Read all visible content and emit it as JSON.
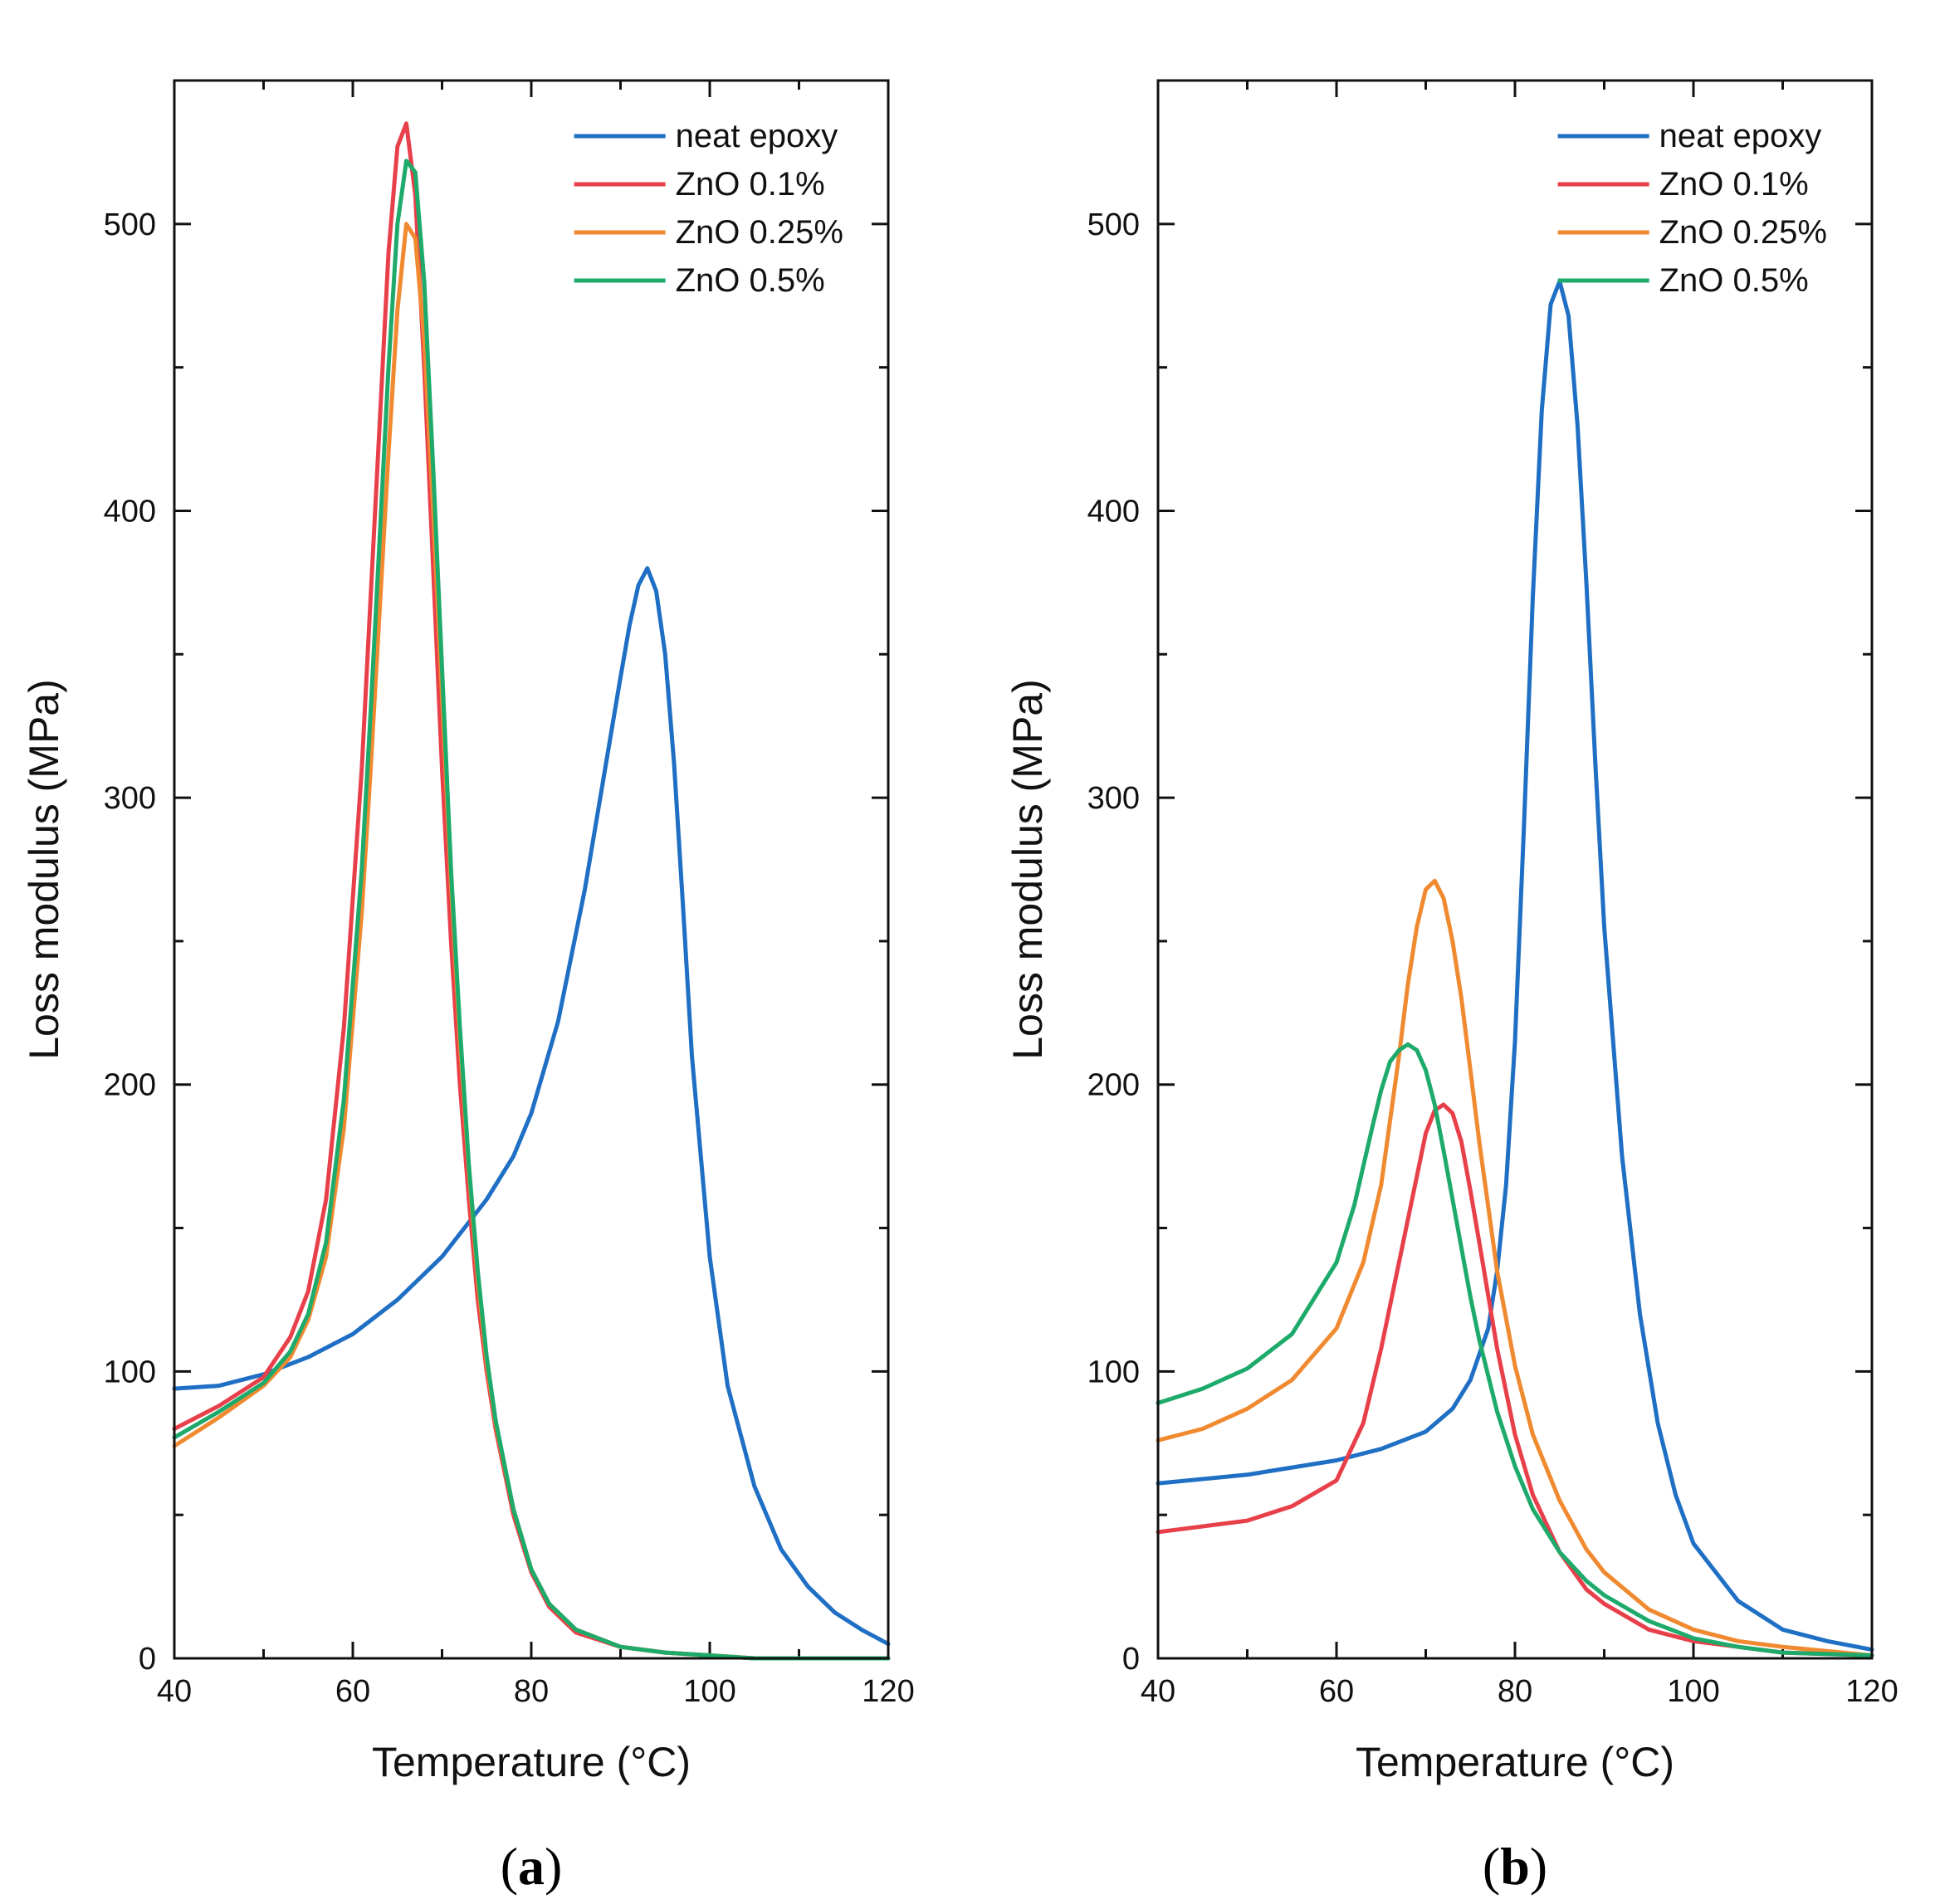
{
  "chart_data": [
    {
      "type": "line",
      "panel_label": "a",
      "xlabel": "Temperature (°C)",
      "ylabel": "Loss modulus (MPa)",
      "xlim": [
        40,
        120
      ],
      "ylim": [
        0,
        550
      ],
      "xticks": [
        40,
        60,
        80,
        100,
        120
      ],
      "yticks": [
        0,
        100,
        200,
        300,
        400,
        500
      ],
      "legend_position": "top-right",
      "series": [
        {
          "name": "neat epoxy",
          "color": "#1f6fc4",
          "x": [
            40,
            45,
            50,
            55,
            60,
            65,
            70,
            75,
            78,
            80,
            83,
            86,
            88,
            90,
            91,
            92,
            93,
            94,
            95,
            96,
            97,
            98,
            100,
            102,
            105,
            108,
            111,
            114,
            117,
            120
          ],
          "y": [
            94,
            95,
            99,
            105,
            113,
            125,
            140,
            160,
            175,
            190,
            222,
            268,
            305,
            342,
            360,
            374,
            380,
            372,
            350,
            312,
            262,
            210,
            140,
            95,
            60,
            38,
            25,
            16,
            10,
            5
          ]
        },
        {
          "name": "ZnO 0.1%",
          "color": "#e8404a",
          "x": [
            40,
            45,
            50,
            53,
            55,
            57,
            59,
            61,
            62,
            63,
            64,
            65,
            66,
            67,
            68,
            69,
            70,
            71,
            72,
            73,
            74,
            75,
            76,
            78,
            80,
            82,
            85,
            90,
            95,
            100,
            105,
            110,
            120
          ],
          "y": [
            80,
            88,
            98,
            112,
            128,
            160,
            220,
            310,
            370,
            430,
            490,
            527,
            535,
            510,
            450,
            380,
            310,
            250,
            200,
            160,
            125,
            100,
            80,
            50,
            30,
            18,
            9,
            4,
            2,
            1,
            0,
            0,
            0
          ]
        },
        {
          "name": "ZnO 0.25%",
          "color": "#f08a30",
          "x": [
            40,
            45,
            50,
            53,
            55,
            57,
            59,
            61,
            62,
            63,
            64,
            65,
            66,
            67,
            68,
            69,
            70,
            71,
            72,
            73,
            74,
            75,
            76,
            78,
            80,
            82,
            85,
            90,
            95,
            100,
            105,
            110,
            120
          ],
          "y": [
            74,
            84,
            95,
            105,
            118,
            140,
            185,
            260,
            310,
            365,
            420,
            470,
            500,
            495,
            460,
            400,
            335,
            270,
            215,
            170,
            132,
            103,
            82,
            52,
            31,
            19,
            10,
            4,
            2,
            1,
            0,
            0,
            0
          ]
        },
        {
          "name": "ZnO 0.5%",
          "color": "#1daa6a",
          "x": [
            40,
            45,
            50,
            53,
            55,
            57,
            59,
            61,
            62,
            63,
            64,
            65,
            66,
            67,
            68,
            69,
            70,
            71,
            72,
            73,
            74,
            75,
            76,
            78,
            80,
            82,
            85,
            90,
            95,
            100,
            105,
            110,
            120
          ],
          "y": [
            77,
            86,
            96,
            107,
            120,
            145,
            195,
            275,
            330,
            390,
            450,
            500,
            522,
            518,
            480,
            415,
            345,
            275,
            220,
            172,
            135,
            105,
            83,
            52,
            31,
            19,
            10,
            4,
            2,
            1,
            0,
            0,
            0
          ]
        }
      ]
    },
    {
      "type": "line",
      "panel_label": "b",
      "xlabel": "Temperature (°C)",
      "ylabel": "Loss modulus (MPa)",
      "xlim": [
        40,
        120
      ],
      "ylim": [
        0,
        550
      ],
      "xticks": [
        40,
        60,
        80,
        100,
        120
      ],
      "yticks": [
        0,
        100,
        200,
        300,
        400,
        500
      ],
      "legend_position": "top-right",
      "series": [
        {
          "name": "neat epoxy",
          "color": "#1f6fc4",
          "x": [
            40,
            50,
            60,
            65,
            70,
            73,
            75,
            77,
            78,
            79,
            80,
            81,
            82,
            83,
            84,
            85,
            86,
            87,
            88,
            89,
            90,
            92,
            94,
            96,
            98,
            100,
            105,
            110,
            115,
            120
          ],
          "y": [
            61,
            64,
            69,
            73,
            79,
            87,
            97,
            115,
            135,
            165,
            215,
            290,
            370,
            435,
            472,
            480,
            468,
            430,
            375,
            312,
            255,
            175,
            120,
            82,
            57,
            40,
            20,
            10,
            6,
            3
          ]
        },
        {
          "name": "ZnO 0.1%",
          "color": "#e8404a",
          "x": [
            40,
            50,
            55,
            60,
            63,
            65,
            67,
            69,
            70,
            71,
            72,
            73,
            74,
            75,
            76,
            78,
            80,
            82,
            85,
            88,
            90,
            95,
            100,
            105,
            110,
            120
          ],
          "y": [
            44,
            48,
            53,
            62,
            82,
            108,
            138,
            168,
            183,
            191,
            193,
            190,
            180,
            163,
            145,
            108,
            78,
            57,
            37,
            24,
            19,
            10,
            6,
            4,
            2,
            1
          ]
        },
        {
          "name": "ZnO 0.25%",
          "color": "#f08a30",
          "x": [
            40,
            45,
            50,
            55,
            60,
            63,
            65,
            67,
            68,
            69,
            70,
            71,
            72,
            73,
            74,
            75,
            76,
            78,
            80,
            82,
            85,
            88,
            90,
            95,
            100,
            105,
            110,
            120
          ],
          "y": [
            76,
            80,
            87,
            97,
            115,
            138,
            165,
            210,
            235,
            255,
            268,
            271,
            265,
            250,
            230,
            205,
            180,
            135,
            102,
            78,
            55,
            38,
            30,
            17,
            10,
            6,
            4,
            1
          ]
        },
        {
          "name": "ZnO 0.5%",
          "color": "#1daa6a",
          "x": [
            40,
            45,
            50,
            55,
            60,
            62,
            64,
            65,
            66,
            67,
            68,
            69,
            70,
            71,
            72,
            73,
            74,
            75,
            76,
            78,
            80,
            82,
            85,
            88,
            90,
            95,
            100,
            105,
            110,
            120
          ],
          "y": [
            89,
            94,
            101,
            113,
            138,
            158,
            185,
            198,
            208,
            212,
            214,
            212,
            205,
            193,
            177,
            160,
            143,
            126,
            111,
            86,
            67,
            52,
            37,
            27,
            22,
            13,
            7,
            4,
            2,
            1
          ]
        }
      ]
    }
  ]
}
